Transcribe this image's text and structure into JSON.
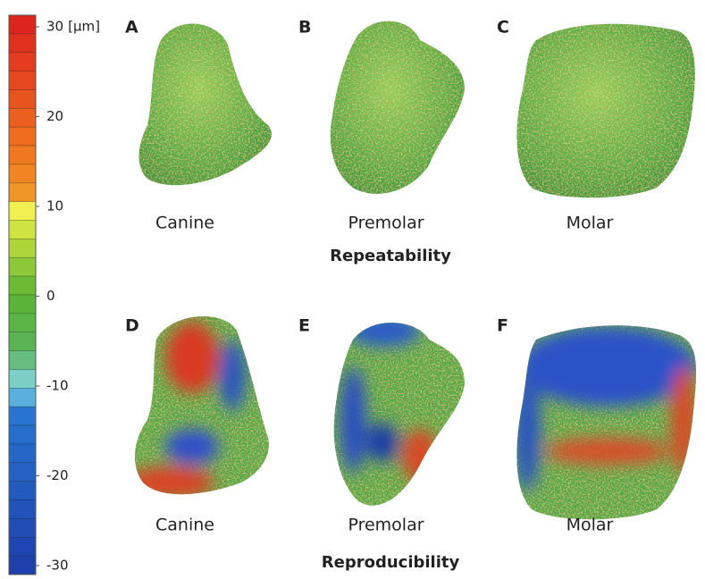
{
  "scale": {
    "ticks": [
      30,
      20,
      10,
      0,
      -10,
      -20,
      -30
    ],
    "unit": "[µm]"
  },
  "rows": [
    {
      "title": "Repeatability",
      "panels": [
        {
          "letter": "A",
          "label": "Canine"
        },
        {
          "letter": "B",
          "label": "Premolar"
        },
        {
          "letter": "C",
          "label": "Molar"
        }
      ]
    },
    {
      "title": "Reproducibility",
      "panels": [
        {
          "letter": "D",
          "label": "Canine"
        },
        {
          "letter": "E",
          "label": "Premolar"
        },
        {
          "letter": "F",
          "label": "Molar"
        }
      ]
    }
  ]
}
